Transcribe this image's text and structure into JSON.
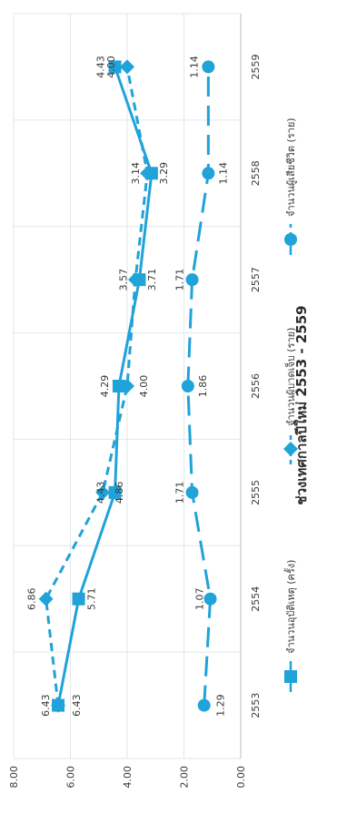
{
  "chart_data": {
    "type": "line",
    "title": "ช่วงเทศกาลปีใหม่ 2553 - 2559",
    "categories": [
      "2553",
      "2554",
      "2555",
      "2556",
      "2557",
      "2558",
      "2559"
    ],
    "ylim": [
      0,
      8
    ],
    "yticks": [
      "0.00",
      "2.00",
      "4.00",
      "6.00",
      "8.00"
    ],
    "grid": true,
    "legend_position": "bottom",
    "series": [
      {
        "name": "จำนวนอุบัติเหตุ (ครั้ง)",
        "style": "solid-square",
        "values": [
          6.43,
          5.71,
          4.43,
          4.29,
          3.57,
          3.14,
          4.43
        ],
        "labels": [
          "6.43",
          "5.71",
          "4.43",
          "4.29",
          "3.57",
          "3.14",
          "4.43"
        ]
      },
      {
        "name": "จำนวนผู้บาดเจ็บ (ราย)",
        "style": "short-dash-diamond",
        "values": [
          6.43,
          6.86,
          4.86,
          4.0,
          3.71,
          3.29,
          4.0
        ],
        "labels": [
          "6.43",
          "6.86",
          "4.86",
          "4.00",
          "3.71",
          "3.29",
          "4.00"
        ]
      },
      {
        "name": "จำนวนผู้เสียชีวิต (ราย)",
        "style": "long-dash-circle",
        "values": [
          1.29,
          1.07,
          1.71,
          1.86,
          1.71,
          1.14,
          1.14
        ],
        "labels": [
          "1.29",
          "1.07",
          "1.71",
          "1.86",
          "1.71",
          "1.14",
          "1.14"
        ]
      }
    ],
    "color": "#1fa3d9",
    "text_color": "#3a3a3a",
    "grid_color": "#dfe7ec"
  }
}
